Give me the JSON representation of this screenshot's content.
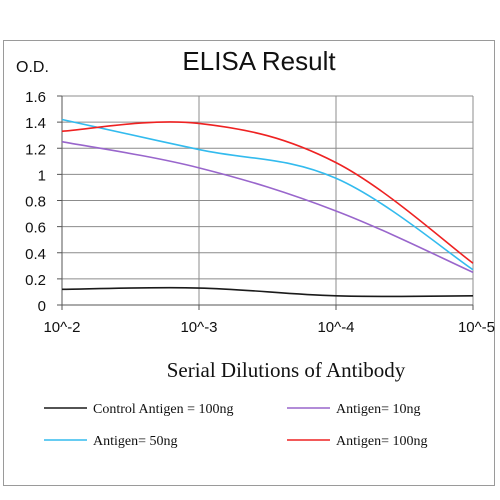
{
  "chart_data": {
    "type": "line",
    "title": "ELISA Result",
    "ylabel": "O.D.",
    "xlabel": "Serial Dilutions  of Antibody",
    "x_ticks": [
      "10^-2",
      "10^-3",
      "10^-4",
      "10^-5"
    ],
    "y_ticks": [
      "0",
      "0.2",
      "0.4",
      "0.6",
      "0.8",
      "1",
      "1.2",
      "1.4",
      "1.6"
    ],
    "ylim": [
      0,
      1.6
    ],
    "x_scale": "log",
    "grid": true,
    "legend_position": "bottom",
    "series": [
      {
        "name": "Control Antigen = 100ng",
        "color": "#1a1a1a",
        "x": [
          0.01,
          0.001,
          0.0001,
          1e-05
        ],
        "values": [
          0.12,
          0.13,
          0.07,
          0.07
        ]
      },
      {
        "name": "Antigen= 10ng",
        "color": "#9966cc",
        "x": [
          0.01,
          0.001,
          0.0001,
          1e-05
        ],
        "values": [
          1.25,
          1.05,
          0.72,
          0.25
        ]
      },
      {
        "name": "Antigen= 50ng",
        "color": "#33bbee",
        "x": [
          0.01,
          0.001,
          0.0001,
          1e-05
        ],
        "values": [
          1.42,
          1.19,
          0.97,
          0.27
        ]
      },
      {
        "name": "Antigen= 100ng",
        "color": "#ee2222",
        "x": [
          0.01,
          0.001,
          0.0001,
          1e-05
        ],
        "values": [
          1.33,
          1.39,
          1.09,
          0.32
        ]
      }
    ]
  }
}
